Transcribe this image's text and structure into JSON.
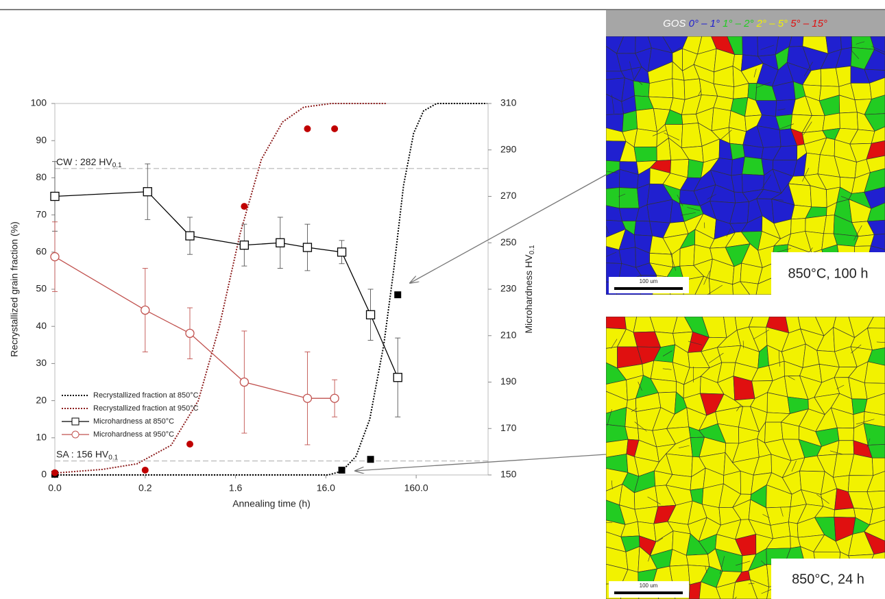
{
  "chart_data": {
    "type": "line",
    "xlabel": "Annealing time (h)",
    "ylabel": "Recrystallized grain fraction (%)",
    "y2label": {
      "text": "Microhardness HV",
      "sub": "0.1"
    },
    "xscale": "log",
    "xlim": [
      0.016,
      1000
    ],
    "xticks": [
      {
        "value": 0.016,
        "label": "0.0"
      },
      {
        "value": 0.16,
        "label": "0.2"
      },
      1.6,
      {
        "value": 16,
        "label": "16.0"
      },
      {
        "value": 160,
        "label": "160.0"
      }
    ],
    "ylim": [
      0,
      100
    ],
    "yticks": [
      0,
      10,
      20,
      30,
      40,
      50,
      60,
      70,
      80,
      90,
      100
    ],
    "y2lim": [
      150,
      310
    ],
    "y2ticks": [
      150,
      170,
      190,
      210,
      230,
      250,
      270,
      290,
      310
    ],
    "reference_lines": [
      {
        "axis": "y2",
        "value": 282,
        "label": "CW : 282 HV",
        "sub": "0.1"
      },
      {
        "axis": "y2",
        "value": 156,
        "label": "SA : 156 HV",
        "sub": "0.1"
      }
    ],
    "legend": "lower left",
    "series": [
      {
        "name": "Recrystallized fraction at 850°C",
        "color": "#000000",
        "style": "dotted",
        "x": [
          0.016,
          17,
          24,
          34.5,
          49,
          70,
          90,
          116,
          150,
          193,
          270,
          976
        ],
        "values": [
          0,
          0,
          1,
          5,
          15,
          35,
          55,
          78,
          92,
          98,
          100,
          100
        ]
      },
      {
        "name": "Recrystallized fraction at 950°C",
        "color": "#8b1a1a",
        "style": "dotted",
        "x": [
          0.016,
          0.054,
          0.13,
          0.31,
          0.62,
          1.06,
          1.8,
          3.1,
          5.3,
          9.1,
          18.3,
          74
        ],
        "values": [
          0.5,
          1.5,
          3,
          8,
          20,
          40,
          65,
          85,
          95,
          99,
          100,
          100
        ]
      },
      {
        "name": "Microhardness at 850°C",
        "color": "#000000",
        "style": "solid",
        "marker": "square",
        "axis": "y2",
        "x": [
          0.016,
          0.17,
          0.5,
          2,
          5,
          10,
          24,
          50,
          100
        ],
        "values": [
          270,
          272,
          253,
          249,
          250,
          248,
          246,
          219,
          192
        ],
        "errors": [
          15,
          12,
          8,
          9,
          11,
          10,
          5,
          11,
          17
        ]
      },
      {
        "name": "Microhardness at 950°C",
        "color": "#c0504d",
        "style": "solid",
        "marker": "circle",
        "axis": "y2",
        "x": [
          0.016,
          0.16,
          0.5,
          2,
          10,
          20
        ],
        "values": [
          244,
          221,
          211,
          190,
          183,
          183
        ],
        "errors": [
          15,
          18,
          11,
          22,
          20,
          8
        ]
      },
      {
        "color": "#000000",
        "style": "none",
        "marker": "filled-square",
        "x": [
          0.016,
          24,
          50,
          100
        ],
        "values": [
          0.2,
          1.3,
          4.2,
          48.5
        ]
      },
      {
        "color": "#c00000",
        "style": "none",
        "marker": "filled-circle",
        "x": [
          0.016,
          0.16,
          0.5,
          2,
          10,
          20
        ],
        "values": [
          0.6,
          1.3,
          8.3,
          72.3,
          93.2,
          93.2
        ]
      }
    ]
  },
  "gos_legend": {
    "label": "GOS",
    "ranges": [
      {
        "text": "0° – 1°",
        "color": "#2020d0"
      },
      {
        "text": "1° – 2°",
        "color": "#22cc22"
      },
      {
        "text": "2° – 5°",
        "color": "#f2f200"
      },
      {
        "text": "5° – 15°",
        "color": "#e01010"
      }
    ]
  },
  "panels": [
    {
      "caption": "850°C, 100 h",
      "scale_bar": "100 um"
    },
    {
      "caption": "850°C, 24 h",
      "scale_bar": "100 um"
    }
  ]
}
